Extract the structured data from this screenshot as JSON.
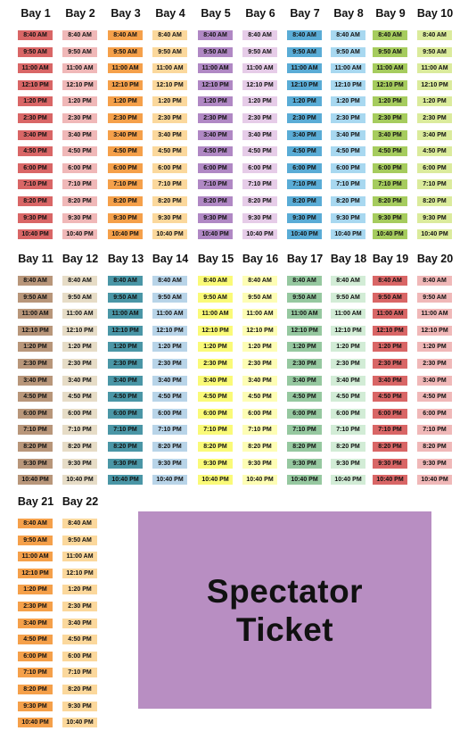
{
  "times": [
    "8:40 AM",
    "9:50 AM",
    "11:00 AM",
    "12:10 PM",
    "1:20 PM",
    "2:30 PM",
    "3:40 PM",
    "4:50 PM",
    "6:00 PM",
    "7:10 PM",
    "8:20 PM",
    "9:30 PM",
    "10:40 PM"
  ],
  "bays": [
    {
      "label": "Bay 1",
      "color": "#d96666"
    },
    {
      "label": "Bay 2",
      "color": "#f0b8b8"
    },
    {
      "label": "Bay 3",
      "color": "#f5a04a"
    },
    {
      "label": "Bay 4",
      "color": "#fbd89c"
    },
    {
      "label": "Bay 5",
      "color": "#b088c4"
    },
    {
      "label": "Bay 6",
      "color": "#e6cce8"
    },
    {
      "label": "Bay 7",
      "color": "#5aacd6"
    },
    {
      "label": "Bay 8",
      "color": "#a8d8f0"
    },
    {
      "label": "Bay 9",
      "color": "#a6cc5e"
    },
    {
      "label": "Bay 10",
      "color": "#dbeb9c"
    },
    {
      "label": "Bay 11",
      "color": "#b8967a"
    },
    {
      "label": "Bay 12",
      "color": "#e6dcc6"
    },
    {
      "label": "Bay 13",
      "color": "#4a96a6"
    },
    {
      "label": "Bay 14",
      "color": "#b8d4e8"
    },
    {
      "label": "Bay 15",
      "color": "#fafa78"
    },
    {
      "label": "Bay 16",
      "color": "#fdfdb4"
    },
    {
      "label": "Bay 17",
      "color": "#96c8a0"
    },
    {
      "label": "Bay 18",
      "color": "#d2ecd6"
    },
    {
      "label": "Bay 19",
      "color": "#d96666"
    },
    {
      "label": "Bay 20",
      "color": "#f0b8b8"
    },
    {
      "label": "Bay 21",
      "color": "#f5a04a"
    },
    {
      "label": "Bay 22",
      "color": "#fbd89c"
    }
  ],
  "spectator": {
    "label": "Spectator Ticket",
    "color": "#b88ec2"
  }
}
